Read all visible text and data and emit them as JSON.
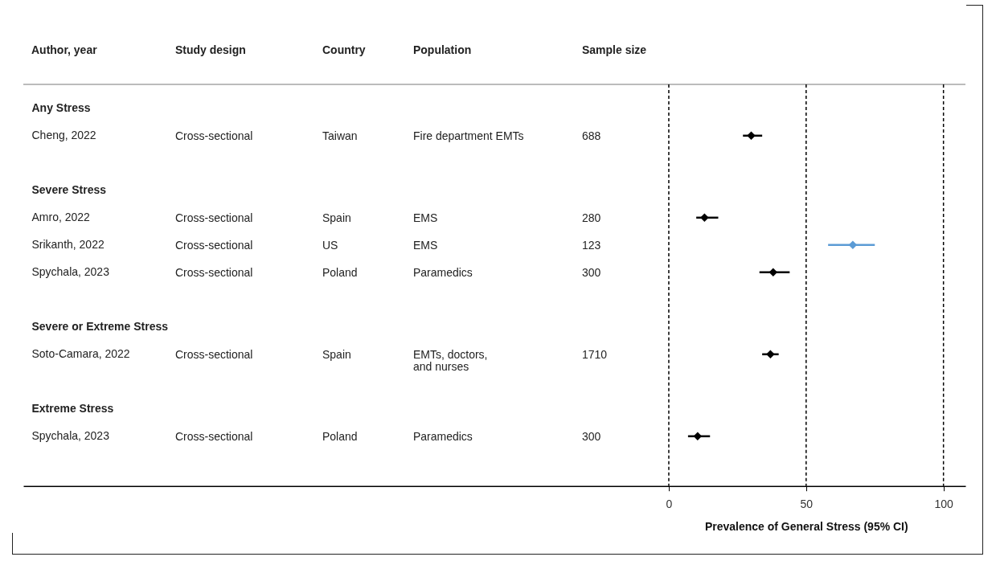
{
  "chart_data": {
    "type": "scatter",
    "orientation": "horizontal",
    "xlabel": "Prevalence of General Stress (95% CI)",
    "categories": [
      "Any Stress",
      "Cheng, 2022",
      null,
      "Severe Stress",
      "Amro, 2022",
      "Srikanth, 2022",
      "Spychala, 2023",
      null,
      "Severe or Extreme Stress",
      "Soto-Camara, 2022",
      null,
      "Extreme Stress",
      "Spychala, 2023",
      null
    ],
    "values": [
      null,
      30,
      null,
      null,
      13,
      67,
      38,
      null,
      null,
      37,
      null,
      null,
      10.5,
      null
    ],
    "errors": [
      null,
      [
        27,
        34
      ],
      null,
      null,
      [
        10,
        18
      ],
      [
        58,
        75
      ],
      [
        33,
        44
      ],
      null,
      null,
      [
        34,
        40
      ],
      null,
      null,
      [
        7,
        15
      ],
      null
    ],
    "colors": [
      null,
      "#000000",
      null,
      null,
      "#000000",
      "#5b9bd5",
      "#000000",
      null,
      null,
      "#000000",
      null,
      null,
      "#000000",
      null
    ],
    "marker": "diamond",
    "grid": false,
    "xlim": [
      -235,
      108
    ],
    "xticks": [
      0,
      50,
      100
    ],
    "ref_lines": [
      {
        "axis": "x",
        "value": 0,
        "color": "#000000",
        "line_style": "dashed"
      },
      {
        "axis": "x",
        "value": 50,
        "color": "#000000",
        "line_style": "dashed"
      },
      {
        "axis": "x",
        "value": 100,
        "color": "#000000",
        "line_style": "dashed"
      }
    ],
    "annotations": [
      "Author, year",
      "Study design",
      "Country",
      "Population",
      "Sample size",
      "Cross-sectional",
      "Taiwan",
      "Fire department EMTs",
      "688",
      "Cross-sectional",
      "Spain",
      "EMS",
      "280",
      "Cross-sectional",
      "US",
      "EMS",
      "123",
      "Cross-sectional",
      "Poland",
      "Paramedics",
      "300",
      "Cross-sectional",
      "Spain",
      "EMTs, doctors,\nand nurses",
      "1710",
      "Cross-sectional",
      "Poland",
      "Paramedics",
      "300"
    ]
  }
}
